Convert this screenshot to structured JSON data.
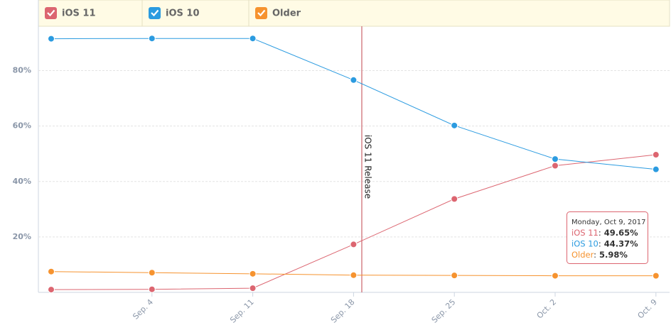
{
  "chart_data": {
    "type": "line",
    "categories": [
      null,
      "Sep. 4",
      "Sep. 11",
      "Sep. 18",
      "Sep. 25",
      "Oct. 2",
      "Oct. 9"
    ],
    "series": [
      {
        "name": "iOS 11",
        "color": "#dc6570",
        "values": [
          1.0,
          1.1,
          1.5,
          17.3,
          33.7,
          45.7,
          49.65
        ]
      },
      {
        "name": "iOS 10",
        "color": "#2b9be0",
        "values": [
          91.5,
          91.6,
          91.6,
          76.6,
          60.2,
          48.1,
          44.37
        ]
      },
      {
        "name": "Older",
        "color": "#f6932f",
        "values": [
          7.5,
          7.1,
          6.7,
          6.2,
          6.1,
          6.0,
          5.98
        ]
      }
    ],
    "ylim": [
      0,
      96
    ],
    "yticks": [
      {
        "value": 20,
        "label": "20%"
      },
      {
        "value": 40,
        "label": "40%"
      },
      {
        "value": 60,
        "label": "60%"
      },
      {
        "value": 80,
        "label": "80%"
      }
    ],
    "grid": true,
    "annotation": "iOS 11 Release",
    "tooltip": {
      "title": "Monday, Oct 9, 2017",
      "separator": ":",
      "values": [
        "49.65%",
        "44.37%",
        "5.98%"
      ]
    }
  }
}
